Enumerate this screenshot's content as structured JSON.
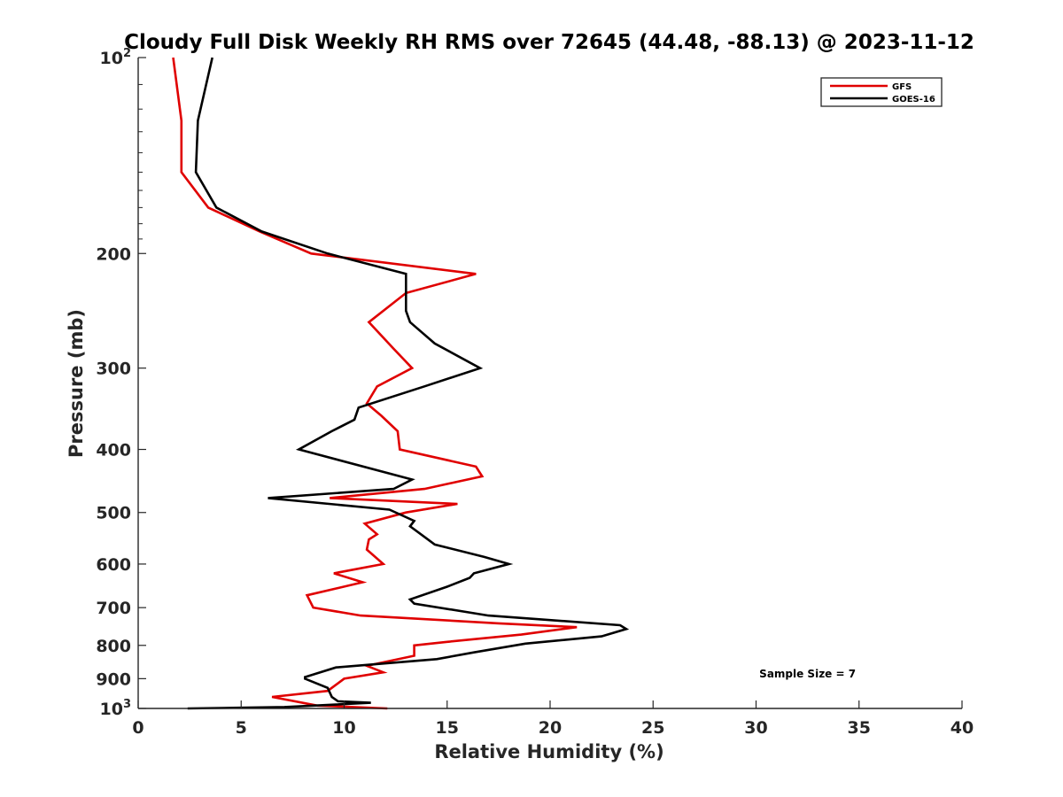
{
  "chart_data": {
    "type": "line",
    "title": "Cloudy Full Disk Weekly RH RMS over 72645 (44.48, -88.13) @ 2023-11-12",
    "xlabel": "Relative Humidity (%)",
    "ylabel": "Pressure (mb)",
    "xlim": [
      0,
      40
    ],
    "ylim": [
      1000,
      100
    ],
    "yscale": "log",
    "y_reversed": true,
    "grid": false,
    "legend_position": "top-right",
    "x_ticks": [
      "0",
      "5",
      "10",
      "15",
      "20",
      "25",
      "30",
      "35",
      "40"
    ],
    "y_ticks": [
      {
        "value": 100,
        "base": "10",
        "exp": "2"
      },
      {
        "value": 200,
        "label": "200"
      },
      {
        "value": 300,
        "label": "300"
      },
      {
        "value": 400,
        "label": "400"
      },
      {
        "value": 500,
        "label": "500"
      },
      {
        "value": 600,
        "label": "600"
      },
      {
        "value": 700,
        "label": "700"
      },
      {
        "value": 800,
        "label": "800"
      },
      {
        "value": 900,
        "label": "900"
      },
      {
        "value": 1000,
        "base": "10",
        "exp": "3"
      }
    ],
    "series": [
      {
        "name": "GFS",
        "color": "#e00000",
        "points": [
          [
            1.7,
            100
          ],
          [
            2.1,
            125
          ],
          [
            2.1,
            150
          ],
          [
            3.4,
            170
          ],
          [
            5.9,
            185
          ],
          [
            8.4,
            200
          ],
          [
            16.4,
            215
          ],
          [
            13,
            230
          ],
          [
            11.2,
            255
          ],
          [
            12.4,
            280
          ],
          [
            13.3,
            300
          ],
          [
            11.6,
            320
          ],
          [
            11.1,
            340
          ],
          [
            11.8,
            355
          ],
          [
            12.6,
            375
          ],
          [
            12.7,
            400
          ],
          [
            16.4,
            425
          ],
          [
            16.7,
            440
          ],
          [
            13.9,
            460
          ],
          [
            9.3,
            475
          ],
          [
            15.5,
            485
          ],
          [
            13,
            500
          ],
          [
            11,
            520
          ],
          [
            11.6,
            540
          ],
          [
            11.2,
            550
          ],
          [
            11.1,
            570
          ],
          [
            11.9,
            600
          ],
          [
            9.5,
            620
          ],
          [
            10.9,
            640
          ],
          [
            8.2,
            670
          ],
          [
            8.5,
            700
          ],
          [
            10.8,
            720
          ],
          [
            17.5,
            740
          ],
          [
            21.3,
            750
          ],
          [
            18.6,
            770
          ],
          [
            15,
            790
          ],
          [
            13.4,
            800
          ],
          [
            13.4,
            815
          ],
          [
            13.4,
            830
          ],
          [
            11.1,
            860
          ],
          [
            11.9,
            880
          ],
          [
            10,
            900
          ],
          [
            9.2,
            940
          ],
          [
            6.5,
            960
          ],
          [
            8.7,
            990
          ],
          [
            12.1,
            1000
          ]
        ]
      },
      {
        "name": "GOES-16",
        "color": "#000000",
        "points": [
          [
            3.6,
            100
          ],
          [
            2.9,
            125
          ],
          [
            2.8,
            150
          ],
          [
            3.8,
            170
          ],
          [
            6,
            185
          ],
          [
            9.2,
            200
          ],
          [
            13,
            215
          ],
          [
            13,
            245
          ],
          [
            13.2,
            255
          ],
          [
            14.4,
            275
          ],
          [
            16.6,
            300
          ],
          [
            13.9,
            320
          ],
          [
            10.7,
            345
          ],
          [
            10.5,
            360
          ],
          [
            9.4,
            375
          ],
          [
            7.8,
            400
          ],
          [
            13.3,
            445
          ],
          [
            12.4,
            460
          ],
          [
            6.3,
            475
          ],
          [
            12.2,
            495
          ],
          [
            13.4,
            515
          ],
          [
            13.2,
            525
          ],
          [
            13.9,
            545
          ],
          [
            14.4,
            560
          ],
          [
            16.8,
            585
          ],
          [
            18,
            600
          ],
          [
            16.3,
            620
          ],
          [
            16.1,
            630
          ],
          [
            15,
            650
          ],
          [
            13.2,
            680
          ],
          [
            13.4,
            690
          ],
          [
            17,
            720
          ],
          [
            23.4,
            745
          ],
          [
            23.7,
            755
          ],
          [
            22.5,
            775
          ],
          [
            18.8,
            795
          ],
          [
            16.3,
            820
          ],
          [
            14.5,
            840
          ],
          [
            9.6,
            865
          ],
          [
            8.1,
            895
          ],
          [
            8.1,
            900
          ],
          [
            9.2,
            930
          ],
          [
            9.4,
            960
          ],
          [
            9.7,
            975
          ],
          [
            11.3,
            980
          ],
          [
            7.1,
            995
          ],
          [
            2.4,
            1000
          ]
        ]
      }
    ],
    "annotations": [
      {
        "text": "Sample Size = 7",
        "x": 32.5,
        "y": 905
      }
    ]
  }
}
